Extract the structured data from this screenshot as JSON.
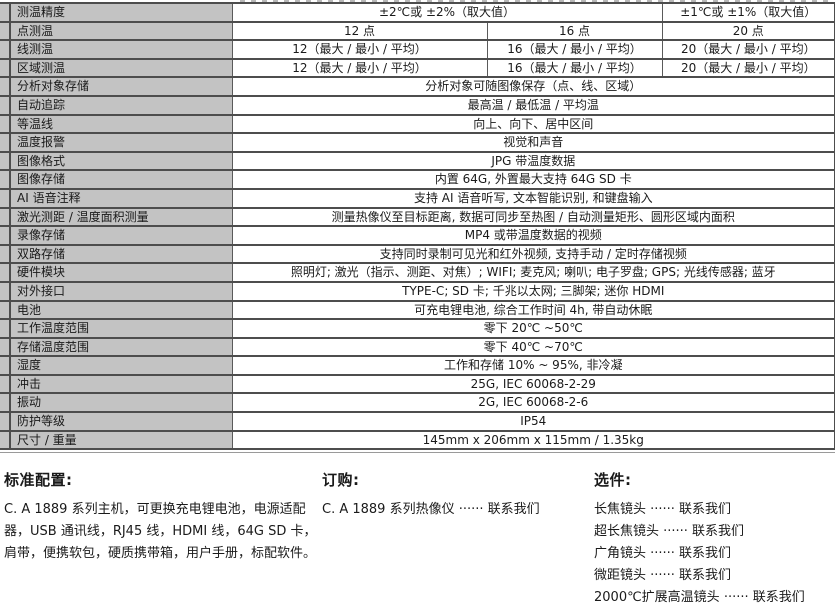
{
  "page": {
    "background": "#ffffff",
    "border_color": "#4d4d4d",
    "label_bg": "#c3c3c3",
    "text_color": "#1a1a1a"
  },
  "table": {
    "rows": [
      {
        "label": "测温精度",
        "cells": [
          {
            "text": "±2℃或 ±2%（取大值）",
            "span": 2
          },
          {
            "text": "±1℃或 ±1%（取大值）",
            "span": 1
          }
        ]
      },
      {
        "label": "点测温",
        "cells": [
          {
            "text": "12 点",
            "span": 1
          },
          {
            "text": "16 点",
            "span": 1
          },
          {
            "text": "20 点",
            "span": 1
          }
        ]
      },
      {
        "label": "线测温",
        "cells": [
          {
            "text": "12（最大 / 最小 / 平均）",
            "span": 1
          },
          {
            "text": "16（最大 / 最小 / 平均）",
            "span": 1
          },
          {
            "text": "20（最大 / 最小 / 平均）",
            "span": 1
          }
        ]
      },
      {
        "label": "区域测温",
        "cells": [
          {
            "text": "12（最大 / 最小 / 平均）",
            "span": 1
          },
          {
            "text": "16（最大 / 最小 / 平均）",
            "span": 1
          },
          {
            "text": "20（最大 / 最小 / 平均）",
            "span": 1
          }
        ]
      },
      {
        "label": "分析对象存储",
        "cells": [
          {
            "text": "分析对象可随图像保存（点、线、区域）",
            "span": 3
          }
        ]
      },
      {
        "label": "自动追踪",
        "cells": [
          {
            "text": "最高温 / 最低温 / 平均温",
            "span": 3
          }
        ]
      },
      {
        "label": "等温线",
        "cells": [
          {
            "text": "向上、向下、居中区间",
            "span": 3
          }
        ]
      },
      {
        "label": "温度报警",
        "cells": [
          {
            "text": "视觉和声音",
            "span": 3
          }
        ]
      },
      {
        "label": "图像格式",
        "cells": [
          {
            "text": "JPG 带温度数据",
            "span": 3
          }
        ]
      },
      {
        "label": "图像存储",
        "cells": [
          {
            "text": "内置 64G, 外置最大支持 64G SD 卡",
            "span": 3
          }
        ]
      },
      {
        "label": "AI 语音注释",
        "cells": [
          {
            "text": "支持 AI 语音听写, 文本智能识别, 和键盘输入",
            "span": 3
          }
        ]
      },
      {
        "label": "激光测距 / 温度面积测量",
        "cells": [
          {
            "text": "测量热像仪至目标距离, 数据可同步至热图 / 自动测量矩形、圆形区域内面积",
            "span": 3
          }
        ]
      },
      {
        "label": "录像存储",
        "cells": [
          {
            "text": "MP4 或带温度数据的视频",
            "span": 3
          }
        ]
      },
      {
        "label": "双路存储",
        "cells": [
          {
            "text": "支持同时录制可见光和红外视频, 支持手动 / 定时存储视频",
            "span": 3
          }
        ]
      },
      {
        "label": "硬件模块",
        "cells": [
          {
            "text": "照明灯; 激光（指示、测距、对焦）; WIFI; 麦克风; 喇叭; 电子罗盘; GPS; 光线传感器; 蓝牙",
            "span": 3
          }
        ]
      },
      {
        "label": "对外接口",
        "cells": [
          {
            "text": "TYPE-C; SD 卡; 千兆以太网; 三脚架; 迷你 HDMI",
            "span": 3
          }
        ]
      },
      {
        "label": "电池",
        "cells": [
          {
            "text": "可充电锂电池, 综合工作时间 4h, 带自动休眠",
            "span": 3
          }
        ]
      },
      {
        "label": "工作温度范围",
        "cells": [
          {
            "text": "零下 20℃ ~50℃",
            "span": 3
          }
        ]
      },
      {
        "label": "存储温度范围",
        "cells": [
          {
            "text": "零下 40℃ ~70℃",
            "span": 3
          }
        ]
      },
      {
        "label": "湿度",
        "cells": [
          {
            "text": "工作和存储 10% ~ 95%, 非冷凝",
            "span": 3
          }
        ]
      },
      {
        "label": "冲击",
        "cells": [
          {
            "text": "25G, IEC 60068-2-29",
            "span": 3
          }
        ]
      },
      {
        "label": "振动",
        "cells": [
          {
            "text": "2G, IEC 60068-2-6",
            "span": 3
          }
        ]
      },
      {
        "label": "防护等级",
        "cells": [
          {
            "text": "IP54",
            "span": 3
          }
        ]
      },
      {
        "label": "尺寸 / 重量",
        "cells": [
          {
            "text": "145mm x 206mm x 115mm / 1.35kg",
            "span": 3
          }
        ]
      }
    ]
  },
  "sections": {
    "standard": {
      "title": "标准配置:",
      "body": "C. A 1889 系列主机，可更换充电锂电池，电源适配器，USB 通讯线，RJ45 线，HDMI 线，64G SD 卡，肩带，便携软包，硬质携带箱，用户手册，标配软件。"
    },
    "order": {
      "title": "订购:",
      "lines": [
        "C. A 1889 系列热像仪 ······ 联系我们"
      ]
    },
    "options": {
      "title": "选件:",
      "lines": [
        "长焦镜头 ······ 联系我们",
        "超长焦镜头 ······ 联系我们",
        "广角镜头 ······ 联系我们",
        "微距镜头 ······ 联系我们",
        "2000℃扩展高温镜头 ······ 联系我们"
      ]
    }
  }
}
